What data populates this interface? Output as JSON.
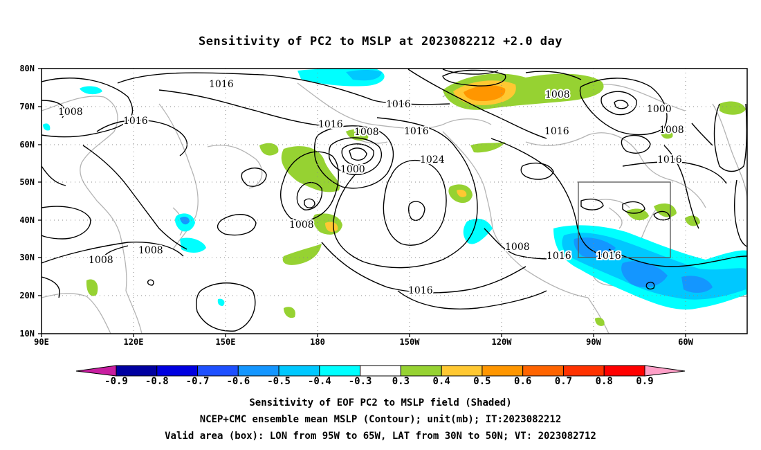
{
  "title": "Sensitivity of PC2 to MSLP at 2023082212 +2.0 day",
  "lat_labels": [
    "80N",
    "70N",
    "60N",
    "50N",
    "40N",
    "30N",
    "20N",
    "10N"
  ],
  "lon_labels": [
    "90E",
    "120E",
    "150E",
    "180",
    "150W",
    "120W",
    "90W",
    "60W"
  ],
  "contour_labels": {
    "c1016a": "1016",
    "c1008a": "1008",
    "c1016b": "1016",
    "c1016c": "1016",
    "c1016d": "1016",
    "c1008b": "1008",
    "c1016e": "1016",
    "c1000a": "1000",
    "c1024": "1024",
    "c1008c": "1008",
    "c1008d": "1008",
    "c1008e": "1008",
    "c1016f": "1016",
    "c1000b": "1000",
    "c1008f": "1008",
    "c1016g": "1016",
    "c1008g": "1008",
    "c1016h": "1016",
    "c1016i": "1016",
    "c1008h": "1008",
    "c1016j": "1016"
  },
  "colorbar": {
    "labels": [
      "-0.9",
      "-0.8",
      "-0.7",
      "-0.6",
      "-0.5",
      "-0.4",
      "-0.3",
      "0.3",
      "0.4",
      "0.5",
      "0.6",
      "0.7",
      "0.8",
      "0.9"
    ],
    "colors": [
      "#0000a0",
      "#0000e0",
      "#1e50ff",
      "#1496ff",
      "#00c8ff",
      "#00ffff",
      "#ffffff",
      "#96d232",
      "#ffc832",
      "#ff9600",
      "#ff6400",
      "#ff3200",
      "#ff0000"
    ],
    "under_color": "#c81ea0",
    "over_color": "#ffa0c8"
  },
  "footer": {
    "line1": "Sensitivity of EOF PC2 to MSLP field (Shaded)",
    "line2": "NCEP+CMC ensemble mean MSLP (Contour); unit(mb); IT:2023082212",
    "line3": "Valid area (box): LON from 95W to 65W, LAT from 30N to 50N; VT: 2023082712"
  },
  "valid_box": {
    "lon_from": "95W",
    "lon_to": "65W",
    "lat_from": "30N",
    "lat_to": "50N"
  }
}
